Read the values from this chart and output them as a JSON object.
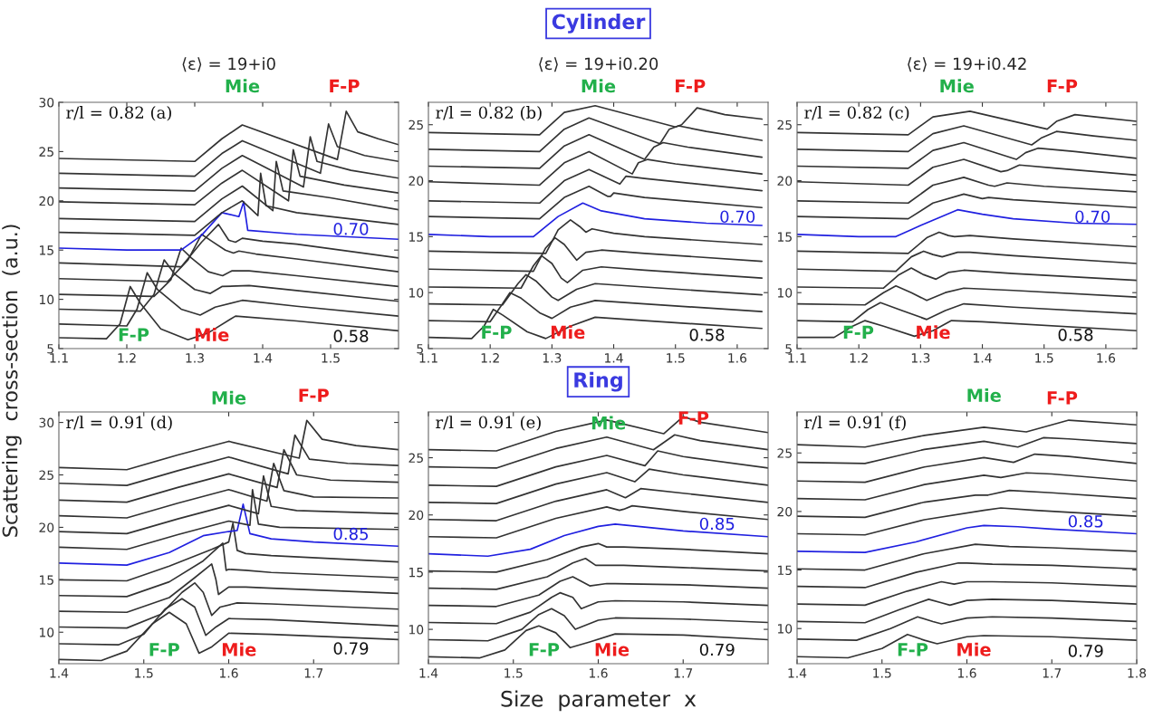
{
  "chart_data": [
    {
      "type": "line",
      "title": "⟨ε⟩ = 19+i0",
      "ylabel": "Scattering  cross-section  (a.u.)",
      "xlim": [
        1.1,
        1.6
      ],
      "ylim": [
        5,
        30
      ],
      "xticks": [
        1.1,
        1.2,
        1.3,
        1.4,
        1.5
      ],
      "yticks": [
        5,
        10,
        15,
        20,
        25,
        30
      ],
      "annotations": [
        "r/l = 0.82 (a)",
        "Mie",
        "F-P",
        "F-P",
        "Mie",
        "0.58",
        "0.70"
      ],
      "series": [
        {
          "color": "#333333",
          "x": [
            1.1,
            1.17,
            1.19,
            1.205,
            1.22,
            1.25,
            1.29,
            1.32,
            1.36,
            1.45,
            1.6
          ],
          "values": [
            6.1,
            6.0,
            7.5,
            11.3,
            9.6,
            7.0,
            5.9,
            6.6,
            8.3,
            7.8,
            6.8
          ]
        },
        {
          "color": "#333333",
          "x": [
            1.1,
            1.2,
            1.215,
            1.23,
            1.245,
            1.28,
            1.308,
            1.33,
            1.37,
            1.45,
            1.6
          ],
          "values": [
            7.5,
            7.3,
            9.0,
            12.7,
            11.0,
            9.0,
            8.4,
            9.2,
            9.9,
            9.3,
            8.3
          ]
        },
        {
          "color": "#333333",
          "x": [
            1.1,
            1.22,
            1.24,
            1.255,
            1.27,
            1.3,
            1.323,
            1.34,
            1.38,
            1.45,
            1.6
          ],
          "values": [
            9.0,
            8.8,
            10.5,
            14.0,
            12.6,
            11.0,
            10.6,
            11.3,
            11.4,
            10.9,
            9.8
          ]
        },
        {
          "color": "#333333",
          "x": [
            1.1,
            1.24,
            1.265,
            1.28,
            1.295,
            1.32,
            1.341,
            1.355,
            1.38,
            1.45,
            1.6
          ],
          "values": [
            10.5,
            10.3,
            12.0,
            15.2,
            14.2,
            12.8,
            12.4,
            12.9,
            12.9,
            12.4,
            11.3
          ]
        },
        {
          "color": "#333333",
          "x": [
            1.1,
            1.26,
            1.29,
            1.31,
            1.325,
            1.345,
            1.357,
            1.365,
            1.39,
            1.45,
            1.6
          ],
          "values": [
            12.1,
            11.8,
            14.0,
            16.6,
            15.9,
            15.0,
            14.7,
            14.9,
            14.6,
            14.1,
            12.8
          ]
        },
        {
          "color": "#333333",
          "x": [
            1.1,
            1.28,
            1.31,
            1.335,
            1.35,
            1.36,
            1.37,
            1.4,
            1.45,
            1.6
          ],
          "values": [
            13.7,
            13.3,
            15.8,
            17.6,
            16.0,
            15.8,
            16.2,
            15.9,
            15.6,
            14.2
          ]
        },
        {
          "color": "#2020e0",
          "x": [
            1.1,
            1.2,
            1.28,
            1.31,
            1.34,
            1.365,
            1.372,
            1.378,
            1.45,
            1.6
          ],
          "values": [
            15.2,
            15.0,
            15.0,
            16.5,
            18.8,
            18.4,
            19.9,
            17.0,
            16.6,
            16.1
          ]
        },
        {
          "color": "#333333",
          "x": [
            1.1,
            1.3,
            1.34,
            1.37,
            1.393,
            1.397,
            1.405,
            1.45,
            1.6
          ],
          "values": [
            16.8,
            16.5,
            18.8,
            20.0,
            18.5,
            22.8,
            19.5,
            18.8,
            17.6
          ]
        },
        {
          "color": "#333333",
          "x": [
            1.1,
            1.3,
            1.34,
            1.37,
            1.415,
            1.42,
            1.43,
            1.5,
            1.6
          ],
          "values": [
            18.2,
            17.9,
            20.2,
            21.5,
            19.0,
            24.0,
            21.0,
            20.3,
            19.1
          ]
        },
        {
          "color": "#333333",
          "x": [
            1.1,
            1.3,
            1.34,
            1.37,
            1.438,
            1.445,
            1.455,
            1.52,
            1.6
          ],
          "values": [
            19.9,
            19.6,
            21.8,
            23.1,
            20.0,
            25.2,
            22.5,
            21.6,
            20.8
          ]
        },
        {
          "color": "#333333",
          "x": [
            1.1,
            1.3,
            1.34,
            1.37,
            1.46,
            1.47,
            1.48,
            1.53,
            1.6
          ],
          "values": [
            21.3,
            21.0,
            23.3,
            24.6,
            21.4,
            26.5,
            24.0,
            23.1,
            22.3
          ]
        },
        {
          "color": "#333333",
          "x": [
            1.1,
            1.3,
            1.34,
            1.37,
            1.485,
            1.497,
            1.51,
            1.55,
            1.6
          ],
          "values": [
            22.8,
            22.5,
            24.8,
            26.1,
            22.8,
            27.8,
            25.5,
            24.6,
            24.0
          ]
        },
        {
          "color": "#333333",
          "x": [
            1.1,
            1.3,
            1.34,
            1.37,
            1.51,
            1.523,
            1.54,
            1.57,
            1.6
          ],
          "values": [
            24.3,
            24.0,
            26.3,
            27.7,
            24.2,
            29.1,
            27.0,
            26.3,
            25.7
          ]
        }
      ]
    },
    {
      "type": "line",
      "title": "⟨ε⟩ = 19+i0.20",
      "subtitle": "Cylinder",
      "xlim": [
        1.1,
        1.65
      ],
      "ylim": [
        5,
        27
      ],
      "xticks": [
        1.1,
        1.2,
        1.3,
        1.4,
        1.5,
        1.6
      ],
      "yticks": [
        5,
        10,
        15,
        20,
        25
      ],
      "annotations": [
        "r/l = 0.82 (b)",
        "Mie",
        "F-P",
        "F-P",
        "Mie",
        "0.58",
        "0.70"
      ],
      "series": [
        {
          "color": "#333333",
          "x": [
            1.1,
            1.17,
            1.19,
            1.205,
            1.22,
            1.26,
            1.29,
            1.33,
            1.37,
            1.45,
            1.64
          ],
          "values": [
            6.0,
            5.9,
            7.0,
            8.5,
            8.0,
            6.5,
            5.9,
            7.0,
            7.8,
            7.5,
            6.8
          ]
        },
        {
          "color": "#333333",
          "x": [
            1.1,
            1.2,
            1.22,
            1.232,
            1.25,
            1.28,
            1.3,
            1.33,
            1.37,
            1.45,
            1.64
          ],
          "values": [
            7.5,
            7.4,
            9.0,
            10.0,
            9.5,
            8.2,
            7.7,
            8.7,
            9.3,
            9.0,
            8.3
          ]
        },
        {
          "color": "#333333",
          "x": [
            1.1,
            1.22,
            1.245,
            1.258,
            1.275,
            1.3,
            1.31,
            1.34,
            1.37,
            1.45,
            1.64
          ],
          "values": [
            9.0,
            8.9,
            10.8,
            11.6,
            11.0,
            9.6,
            9.3,
            10.3,
            10.8,
            10.5,
            9.8
          ]
        },
        {
          "color": "#333333",
          "x": [
            1.1,
            1.25,
            1.27,
            1.283,
            1.3,
            1.315,
            1.325,
            1.35,
            1.38,
            1.45,
            1.64
          ],
          "values": [
            10.5,
            10.4,
            12.4,
            13.3,
            12.6,
            11.3,
            10.9,
            12.0,
            12.3,
            12.0,
            11.3
          ]
        },
        {
          "color": "#333333",
          "x": [
            1.1,
            1.27,
            1.29,
            1.305,
            1.32,
            1.34,
            1.355,
            1.38,
            1.45,
            1.64
          ],
          "values": [
            12.1,
            11.9,
            14.0,
            14.9,
            14.3,
            12.9,
            13.6,
            13.8,
            13.5,
            12.8
          ]
        },
        {
          "color": "#333333",
          "x": [
            1.1,
            1.29,
            1.31,
            1.33,
            1.345,
            1.355,
            1.365,
            1.4,
            1.45,
            1.64
          ],
          "values": [
            13.7,
            13.5,
            15.6,
            16.5,
            15.9,
            15.4,
            15.7,
            15.3,
            15.0,
            14.3
          ]
        },
        {
          "color": "#2020e0",
          "x": [
            1.1,
            1.2,
            1.27,
            1.31,
            1.35,
            1.38,
            1.45,
            1.55,
            1.64
          ],
          "values": [
            15.2,
            15.0,
            15.0,
            16.8,
            18.0,
            17.3,
            16.6,
            16.2,
            16.0
          ]
        },
        {
          "color": "#333333",
          "x": [
            1.1,
            1.28,
            1.32,
            1.36,
            1.39,
            1.395,
            1.4,
            1.45,
            1.64
          ],
          "values": [
            16.8,
            16.6,
            18.5,
            19.5,
            18.6,
            18.6,
            18.9,
            18.5,
            17.6
          ]
        },
        {
          "color": "#333333",
          "x": [
            1.1,
            1.28,
            1.32,
            1.36,
            1.41,
            1.42,
            1.45,
            1.64
          ],
          "values": [
            18.2,
            18.0,
            20.0,
            21.0,
            19.7,
            20.4,
            20.2,
            19.1
          ]
        },
        {
          "color": "#333333",
          "x": [
            1.1,
            1.28,
            1.32,
            1.36,
            1.43,
            1.44,
            1.455,
            1.5,
            1.64
          ],
          "values": [
            19.9,
            19.6,
            21.6,
            22.6,
            20.6,
            21.6,
            21.9,
            21.5,
            20.6
          ]
        },
        {
          "color": "#333333",
          "x": [
            1.1,
            1.28,
            1.32,
            1.36,
            1.45,
            1.465,
            1.48,
            1.52,
            1.64
          ],
          "values": [
            21.3,
            21.1,
            23.1,
            24.1,
            21.9,
            23.0,
            23.4,
            23.0,
            22.1
          ]
        },
        {
          "color": "#333333",
          "x": [
            1.1,
            1.28,
            1.32,
            1.36,
            1.475,
            1.49,
            1.505,
            1.55,
            1.64
          ],
          "values": [
            22.8,
            22.6,
            24.6,
            25.6,
            23.3,
            24.6,
            24.9,
            24.4,
            23.6
          ]
        },
        {
          "color": "#333333",
          "x": [
            1.1,
            1.28,
            1.32,
            1.37,
            1.5,
            1.51,
            1.535,
            1.58,
            1.64
          ],
          "values": [
            24.3,
            24.1,
            26.1,
            26.7,
            24.8,
            25.0,
            26.5,
            25.9,
            25.5
          ]
        }
      ]
    },
    {
      "type": "line",
      "title": "⟨ε⟩ = 19+i0.42",
      "xlim": [
        1.1,
        1.65
      ],
      "ylim": [
        5,
        27
      ],
      "xticks": [
        1.1,
        1.2,
        1.3,
        1.4,
        1.5,
        1.6
      ],
      "yticks": [
        5,
        10,
        15,
        20,
        25
      ],
      "annotations": [
        "r/l = 0.82 (c)",
        "Mie",
        "F-P",
        "F-P",
        "Mie",
        "0.58",
        "0.70"
      ],
      "series": [
        {
          "color": "#333333",
          "x": [
            1.1,
            1.16,
            1.19,
            1.21,
            1.24,
            1.29,
            1.32,
            1.35,
            1.4,
            1.65
          ],
          "values": [
            6.0,
            6.0,
            7.0,
            7.5,
            7.0,
            6.1,
            6.6,
            7.5,
            7.4,
            6.6
          ]
        },
        {
          "color": "#333333",
          "x": [
            1.1,
            1.19,
            1.215,
            1.235,
            1.27,
            1.31,
            1.34,
            1.37,
            1.45,
            1.65
          ],
          "values": [
            7.5,
            7.4,
            8.5,
            9.1,
            8.4,
            7.6,
            8.4,
            9.0,
            8.7,
            8.1
          ]
        },
        {
          "color": "#333333",
          "x": [
            1.1,
            1.21,
            1.24,
            1.26,
            1.285,
            1.31,
            1.34,
            1.37,
            1.45,
            1.65
          ],
          "values": [
            9.0,
            8.9,
            10.0,
            10.6,
            10.0,
            9.3,
            10.0,
            10.4,
            10.2,
            9.6
          ]
        },
        {
          "color": "#333333",
          "x": [
            1.1,
            1.24,
            1.265,
            1.285,
            1.305,
            1.325,
            1.345,
            1.37,
            1.45,
            1.65
          ],
          "values": [
            10.5,
            10.4,
            11.6,
            12.2,
            11.6,
            11.2,
            11.8,
            12.0,
            11.7,
            11.1
          ]
        },
        {
          "color": "#333333",
          "x": [
            1.1,
            1.26,
            1.285,
            1.305,
            1.32,
            1.335,
            1.36,
            1.38,
            1.45,
            1.65
          ],
          "values": [
            12.1,
            11.9,
            13.2,
            13.7,
            13.4,
            13.2,
            13.6,
            13.6,
            13.3,
            12.6
          ]
        },
        {
          "color": "#333333",
          "x": [
            1.1,
            1.28,
            1.31,
            1.33,
            1.345,
            1.355,
            1.38,
            1.45,
            1.65
          ],
          "values": [
            13.7,
            13.5,
            14.9,
            15.4,
            15.1,
            15.0,
            15.1,
            14.8,
            14.1
          ]
        },
        {
          "color": "#2020e0",
          "x": [
            1.1,
            1.2,
            1.26,
            1.3,
            1.36,
            1.4,
            1.45,
            1.55,
            1.65
          ],
          "values": [
            15.2,
            15.0,
            15.0,
            16.0,
            17.4,
            17.0,
            16.6,
            16.2,
            16.1
          ]
        },
        {
          "color": "#333333",
          "x": [
            1.1,
            1.28,
            1.32,
            1.37,
            1.4,
            1.41,
            1.45,
            1.65
          ],
          "values": [
            16.8,
            16.6,
            18.0,
            18.8,
            18.4,
            18.5,
            18.3,
            17.6
          ]
        },
        {
          "color": "#333333",
          "x": [
            1.1,
            1.28,
            1.32,
            1.37,
            1.41,
            1.42,
            1.44,
            1.5,
            1.65
          ],
          "values": [
            18.2,
            18.0,
            19.6,
            20.3,
            19.6,
            19.5,
            19.8,
            19.5,
            19.0
          ]
        },
        {
          "color": "#333333",
          "x": [
            1.1,
            1.28,
            1.32,
            1.37,
            1.43,
            1.44,
            1.46,
            1.52,
            1.65
          ],
          "values": [
            19.9,
            19.6,
            21.2,
            21.9,
            20.8,
            20.9,
            21.4,
            21.1,
            20.5
          ]
        },
        {
          "color": "#333333",
          "x": [
            1.1,
            1.28,
            1.32,
            1.37,
            1.455,
            1.47,
            1.49,
            1.55,
            1.65
          ],
          "values": [
            21.3,
            21.1,
            22.7,
            23.4,
            21.9,
            22.5,
            22.9,
            22.6,
            22.0
          ]
        },
        {
          "color": "#333333",
          "x": [
            1.1,
            1.28,
            1.32,
            1.37,
            1.48,
            1.495,
            1.52,
            1.58,
            1.65
          ],
          "values": [
            22.8,
            22.6,
            24.2,
            24.9,
            23.2,
            23.8,
            24.4,
            24.0,
            23.6
          ]
        },
        {
          "color": "#333333",
          "x": [
            1.1,
            1.28,
            1.32,
            1.38,
            1.505,
            1.52,
            1.55,
            1.6,
            1.65
          ],
          "values": [
            24.3,
            24.1,
            25.7,
            26.2,
            24.6,
            25.3,
            25.9,
            25.6,
            25.3
          ]
        }
      ]
    },
    {
      "type": "line",
      "xlim": [
        1.4,
        1.8
      ],
      "ylim": [
        7,
        31
      ],
      "xticks": [
        1.4,
        1.5,
        1.6,
        1.7
      ],
      "yticks": [
        10,
        15,
        20,
        25,
        30
      ],
      "annotations": [
        "r/l = 0.91 (d)",
        "Mie",
        "F-P",
        "F-P",
        "Mie",
        "0.79",
        "0.85"
      ],
      "series": [
        {
          "color": "#333333",
          "x": [
            1.4,
            1.45,
            1.48,
            1.51,
            1.53,
            1.55,
            1.565,
            1.58,
            1.6,
            1.65,
            1.8
          ],
          "values": [
            7.4,
            7.3,
            8.2,
            10.8,
            11.9,
            10.8,
            8.0,
            8.6,
            9.9,
            9.8,
            9.3
          ]
        },
        {
          "color": "#333333",
          "x": [
            1.4,
            1.47,
            1.5,
            1.525,
            1.545,
            1.56,
            1.573,
            1.585,
            1.6,
            1.65,
            1.8
          ],
          "values": [
            8.9,
            8.8,
            9.8,
            12.2,
            13.2,
            12.4,
            9.7,
            10.5,
            11.3,
            11.2,
            10.6
          ]
        },
        {
          "color": "#333333",
          "x": [
            1.4,
            1.48,
            1.52,
            1.545,
            1.56,
            1.57,
            1.58,
            1.59,
            1.61,
            1.65,
            1.8
          ],
          "values": [
            10.5,
            10.4,
            11.7,
            13.8,
            14.7,
            13.8,
            11.6,
            12.4,
            12.8,
            12.7,
            12.2
          ]
        },
        {
          "color": "#333333",
          "x": [
            1.4,
            1.48,
            1.53,
            1.56,
            1.58,
            1.585,
            1.588,
            1.6,
            1.62,
            1.65,
            1.8
          ],
          "values": [
            12.0,
            11.9,
            13.3,
            15.2,
            16.5,
            15.0,
            13.6,
            14.3,
            14.3,
            14.2,
            13.7
          ]
        },
        {
          "color": "#333333",
          "x": [
            1.4,
            1.48,
            1.53,
            1.57,
            1.593,
            1.597,
            1.6,
            1.62,
            1.65,
            1.8
          ],
          "values": [
            13.5,
            13.4,
            14.8,
            16.8,
            18.5,
            15.9,
            16.0,
            15.9,
            15.7,
            15.2
          ]
        },
        {
          "color": "#333333",
          "x": [
            1.4,
            1.48,
            1.53,
            1.58,
            1.6,
            1.605,
            1.61,
            1.62,
            1.65,
            1.8
          ],
          "values": [
            15.0,
            14.9,
            16.3,
            17.9,
            18.6,
            20.4,
            17.8,
            17.5,
            17.3,
            16.7
          ]
        },
        {
          "color": "#2020e0",
          "x": [
            1.4,
            1.48,
            1.53,
            1.57,
            1.6,
            1.61,
            1.617,
            1.625,
            1.65,
            1.7,
            1.8
          ],
          "values": [
            16.6,
            16.4,
            17.6,
            19.2,
            19.6,
            19.7,
            22.2,
            19.4,
            18.9,
            18.6,
            18.2
          ]
        },
        {
          "color": "#333333",
          "x": [
            1.4,
            1.48,
            1.54,
            1.6,
            1.625,
            1.628,
            1.635,
            1.66,
            1.8
          ],
          "values": [
            18.1,
            17.9,
            19.3,
            20.6,
            20.2,
            23.6,
            20.3,
            20.0,
            19.8
          ]
        },
        {
          "color": "#333333",
          "x": [
            1.4,
            1.48,
            1.54,
            1.6,
            1.635,
            1.641,
            1.65,
            1.68,
            1.8
          ],
          "values": [
            19.6,
            19.4,
            20.8,
            22.1,
            21.3,
            24.9,
            22.0,
            21.6,
            21.3
          ]
        },
        {
          "color": "#333333",
          "x": [
            1.4,
            1.48,
            1.54,
            1.6,
            1.645,
            1.653,
            1.665,
            1.7,
            1.8
          ],
          "values": [
            21.1,
            20.9,
            22.3,
            23.6,
            22.5,
            26.1,
            23.5,
            22.9,
            22.8
          ]
        },
        {
          "color": "#333333",
          "x": [
            1.4,
            1.48,
            1.54,
            1.6,
            1.657,
            1.665,
            1.68,
            1.72,
            1.8
          ],
          "values": [
            22.6,
            22.4,
            23.8,
            25.1,
            23.8,
            27.4,
            25.0,
            24.5,
            24.3
          ]
        },
        {
          "color": "#333333",
          "x": [
            1.4,
            1.48,
            1.54,
            1.6,
            1.67,
            1.678,
            1.695,
            1.74,
            1.8
          ],
          "values": [
            24.2,
            24.0,
            25.4,
            26.7,
            25.1,
            28.8,
            26.5,
            26.1,
            25.9
          ]
        },
        {
          "color": "#333333",
          "x": [
            1.4,
            1.48,
            1.54,
            1.6,
            1.683,
            1.692,
            1.71,
            1.75,
            1.8
          ],
          "values": [
            25.7,
            25.5,
            26.9,
            28.2,
            26.6,
            30.2,
            28.4,
            27.8,
            27.4
          ]
        }
      ]
    },
    {
      "type": "line",
      "subtitle": "Ring",
      "xlabel": "Size  parameter  x",
      "xlim": [
        1.4,
        1.8
      ],
      "ylim": [
        7,
        29
      ],
      "xticks": [
        1.4,
        1.5,
        1.6,
        1.7
      ],
      "yticks": [
        10,
        15,
        20,
        25
      ],
      "annotations": [
        "r/l = 0.91 (e)",
        "Mie",
        "F-P",
        "F-P",
        "Mie",
        "0.79",
        "0.85"
      ],
      "series": [
        {
          "color": "#333333",
          "x": [
            1.4,
            1.46,
            1.49,
            1.515,
            1.53,
            1.55,
            1.567,
            1.59,
            1.62,
            1.7,
            1.8
          ],
          "values": [
            7.6,
            7.5,
            8.2,
            9.9,
            10.3,
            9.7,
            8.4,
            8.9,
            9.6,
            9.5,
            9.1
          ]
        },
        {
          "color": "#333333",
          "x": [
            1.4,
            1.47,
            1.51,
            1.53,
            1.545,
            1.56,
            1.573,
            1.6,
            1.62,
            1.7,
            1.8
          ],
          "values": [
            9.1,
            9.0,
            10.0,
            11.3,
            11.8,
            11.2,
            10.0,
            10.8,
            11.0,
            10.9,
            10.6
          ]
        },
        {
          "color": "#333333",
          "x": [
            1.4,
            1.48,
            1.52,
            1.545,
            1.555,
            1.57,
            1.58,
            1.6,
            1.62,
            1.7,
            1.8
          ],
          "values": [
            10.6,
            10.5,
            11.5,
            12.8,
            13.2,
            12.8,
            11.8,
            12.4,
            12.5,
            12.4,
            12.1
          ]
        },
        {
          "color": "#333333",
          "x": [
            1.4,
            1.48,
            1.53,
            1.555,
            1.57,
            1.58,
            1.59,
            1.61,
            1.62,
            1.7,
            1.8
          ],
          "values": [
            12.1,
            12.0,
            13.0,
            14.2,
            14.6,
            14.2,
            13.8,
            14.0,
            14.0,
            13.9,
            13.6
          ]
        },
        {
          "color": "#333333",
          "x": [
            1.4,
            1.48,
            1.54,
            1.57,
            1.585,
            1.597,
            1.61,
            1.63,
            1.7,
            1.8
          ],
          "values": [
            13.6,
            13.5,
            14.6,
            15.8,
            16.2,
            15.6,
            15.6,
            15.6,
            15.4,
            15.1
          ]
        },
        {
          "color": "#333333",
          "x": [
            1.4,
            1.48,
            1.54,
            1.58,
            1.6,
            1.61,
            1.63,
            1.7,
            1.8
          ],
          "values": [
            15.1,
            15.0,
            16.1,
            17.2,
            17.5,
            17.2,
            17.2,
            17.0,
            16.6
          ]
        },
        {
          "color": "#2020e0",
          "x": [
            1.4,
            1.47,
            1.52,
            1.56,
            1.6,
            1.62,
            1.66,
            1.7,
            1.8
          ],
          "values": [
            16.6,
            16.4,
            17.0,
            18.2,
            19.0,
            19.2,
            18.9,
            18.6,
            18.1
          ]
        },
        {
          "color": "#333333",
          "x": [
            1.4,
            1.48,
            1.55,
            1.61,
            1.625,
            1.63,
            1.64,
            1.7,
            1.8
          ],
          "values": [
            18.1,
            18.0,
            19.7,
            20.7,
            20.4,
            20.5,
            20.8,
            20.3,
            19.6
          ]
        },
        {
          "color": "#333333",
          "x": [
            1.4,
            1.48,
            1.55,
            1.61,
            1.632,
            1.65,
            1.7,
            1.8
          ],
          "values": [
            19.6,
            19.5,
            21.2,
            22.2,
            21.5,
            22.3,
            21.9,
            21.1
          ]
        },
        {
          "color": "#333333",
          "x": [
            1.4,
            1.48,
            1.55,
            1.61,
            1.643,
            1.66,
            1.7,
            1.8
          ],
          "values": [
            21.1,
            21.0,
            22.7,
            23.7,
            22.9,
            24.0,
            23.5,
            22.6
          ]
        },
        {
          "color": "#333333",
          "x": [
            1.4,
            1.48,
            1.55,
            1.61,
            1.655,
            1.67,
            1.7,
            1.8
          ],
          "values": [
            22.6,
            22.5,
            24.2,
            25.2,
            24.3,
            25.6,
            25.1,
            24.1
          ]
        },
        {
          "color": "#333333",
          "x": [
            1.4,
            1.48,
            1.55,
            1.61,
            1.665,
            1.69,
            1.72,
            1.8
          ],
          "values": [
            24.2,
            24.1,
            25.8,
            26.8,
            25.7,
            27.0,
            26.5,
            25.7
          ]
        },
        {
          "color": "#333333",
          "x": [
            1.4,
            1.48,
            1.55,
            1.61,
            1.677,
            1.7,
            1.72,
            1.8
          ],
          "values": [
            25.7,
            25.6,
            27.3,
            28.3,
            27.1,
            28.6,
            28.1,
            27.2
          ]
        }
      ]
    },
    {
      "type": "line",
      "xlim": [
        1.4,
        1.8
      ],
      "ylim": [
        7,
        28.5
      ],
      "xticks": [
        1.4,
        1.5,
        1.6,
        1.7,
        1.8
      ],
      "yticks": [
        10,
        15,
        20,
        25
      ],
      "annotations": [
        "r/l = 0.91 (f)",
        "Mie",
        "F-P",
        "F-P",
        "Mie",
        "0.79",
        "0.85"
      ],
      "series": [
        {
          "color": "#333333",
          "x": [
            1.4,
            1.46,
            1.5,
            1.53,
            1.55,
            1.565,
            1.6,
            1.62,
            1.7,
            1.8
          ],
          "values": [
            7.6,
            7.5,
            8.3,
            9.5,
            9.0,
            8.7,
            9.3,
            9.4,
            9.3,
            9.0
          ]
        },
        {
          "color": "#333333",
          "x": [
            1.4,
            1.47,
            1.51,
            1.542,
            1.56,
            1.57,
            1.6,
            1.63,
            1.7,
            1.8
          ],
          "values": [
            9.1,
            9.0,
            10.0,
            11.0,
            10.6,
            10.4,
            10.9,
            11.0,
            10.9,
            10.6
          ]
        },
        {
          "color": "#333333",
          "x": [
            1.4,
            1.48,
            1.52,
            1.555,
            1.57,
            1.58,
            1.6,
            1.63,
            1.7,
            1.8
          ],
          "values": [
            10.6,
            10.5,
            11.6,
            12.5,
            12.2,
            12.0,
            12.4,
            12.5,
            12.4,
            12.1
          ]
        },
        {
          "color": "#333333",
          "x": [
            1.4,
            1.48,
            1.53,
            1.57,
            1.585,
            1.6,
            1.63,
            1.7,
            1.8
          ],
          "values": [
            12.1,
            12.0,
            13.2,
            14.0,
            13.8,
            14.0,
            14.0,
            13.9,
            13.6
          ]
        },
        {
          "color": "#333333",
          "x": [
            1.4,
            1.48,
            1.54,
            1.59,
            1.6,
            1.63,
            1.7,
            1.8
          ],
          "values": [
            13.6,
            13.5,
            14.8,
            15.6,
            15.6,
            15.5,
            15.4,
            15.1
          ]
        },
        {
          "color": "#333333",
          "x": [
            1.4,
            1.48,
            1.55,
            1.61,
            1.65,
            1.7,
            1.8
          ],
          "values": [
            15.1,
            15.0,
            16.4,
            17.2,
            17.0,
            16.9,
            16.6
          ]
        },
        {
          "color": "#2020e0",
          "x": [
            1.4,
            1.48,
            1.54,
            1.6,
            1.62,
            1.66,
            1.7,
            1.8
          ],
          "values": [
            16.6,
            16.5,
            17.4,
            18.6,
            18.8,
            18.7,
            18.5,
            18.1
          ]
        },
        {
          "color": "#333333",
          "x": [
            1.4,
            1.48,
            1.55,
            1.62,
            1.64,
            1.68,
            1.8
          ],
          "values": [
            18.1,
            18.0,
            19.3,
            20.1,
            20.3,
            20.1,
            19.6
          ]
        },
        {
          "color": "#333333",
          "x": [
            1.4,
            1.48,
            1.55,
            1.61,
            1.625,
            1.65,
            1.7,
            1.8
          ],
          "values": [
            19.6,
            19.5,
            20.8,
            21.4,
            21.4,
            21.8,
            21.6,
            21.1
          ]
        },
        {
          "color": "#333333",
          "x": [
            1.4,
            1.48,
            1.55,
            1.62,
            1.64,
            1.67,
            1.7,
            1.8
          ],
          "values": [
            21.1,
            21.0,
            22.3,
            23.1,
            22.9,
            23.3,
            23.2,
            22.6
          ]
        },
        {
          "color": "#333333",
          "x": [
            1.4,
            1.48,
            1.55,
            1.62,
            1.655,
            1.68,
            1.72,
            1.8
          ],
          "values": [
            22.6,
            22.5,
            23.8,
            24.6,
            24.2,
            24.9,
            24.7,
            24.1
          ]
        },
        {
          "color": "#333333",
          "x": [
            1.4,
            1.48,
            1.55,
            1.62,
            1.66,
            1.69,
            1.72,
            1.8
          ],
          "values": [
            24.2,
            24.1,
            25.3,
            26.0,
            25.5,
            26.3,
            26.2,
            25.8
          ]
        },
        {
          "color": "#333333",
          "x": [
            1.4,
            1.48,
            1.55,
            1.62,
            1.67,
            1.72,
            1.8
          ],
          "values": [
            25.7,
            25.5,
            26.5,
            27.2,
            26.8,
            27.8,
            27.4
          ]
        }
      ]
    }
  ]
}
